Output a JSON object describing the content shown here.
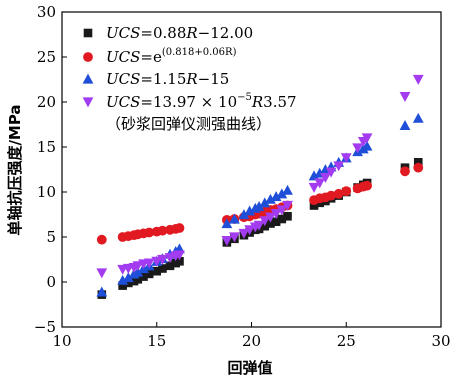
{
  "chart_data": {
    "type": "scatter",
    "xlabel": "回弹值",
    "ylabel": "单轴抗压强度/MPa",
    "xlim": [
      10,
      30
    ],
    "ylim": [
      -5,
      30
    ],
    "xticks": [
      "10",
      "15",
      "20",
      "25",
      "30"
    ],
    "yticks": [
      "-5",
      "0",
      "5",
      "10",
      "15",
      "20",
      "25",
      "30"
    ],
    "grid": false,
    "legend_position": "top-left",
    "series": [
      {
        "name": "UCS=0.88R-12.00",
        "legend_parts": [
          {
            "t": "UCS",
            "i": true
          },
          {
            "t": "=0.88",
            "i": false
          },
          {
            "t": "R",
            "i": true
          },
          {
            "t": "−12.00",
            "i": false
          }
        ],
        "marker": "square",
        "color": "#1a1a1a",
        "x": [
          12.1,
          13.2,
          13.5,
          13.8,
          14.0,
          14.3,
          14.6,
          15.0,
          15.3,
          15.7,
          16.0,
          16.2,
          18.7,
          19.1,
          19.6,
          19.9,
          20.2,
          20.4,
          20.7,
          21.0,
          21.3,
          21.6,
          21.9,
          23.3,
          23.6,
          23.9,
          24.2,
          24.6,
          25.0,
          25.6,
          25.9,
          26.1,
          28.1,
          28.8
        ],
        "y": [
          -1.4,
          -0.4,
          -0.1,
          0.1,
          0.3,
          0.6,
          0.9,
          1.2,
          1.5,
          1.8,
          2.1,
          2.3,
          4.4,
          4.8,
          5.2,
          5.5,
          5.8,
          5.9,
          6.2,
          6.5,
          6.7,
          7.0,
          7.3,
          8.5,
          8.8,
          9.0,
          9.3,
          9.6,
          10.0,
          10.5,
          10.8,
          11.0,
          12.7,
          13.3
        ]
      },
      {
        "name": "UCS=e^(0.818+0.06R)",
        "legend_parts": [
          {
            "t": "UCS",
            "i": true
          },
          {
            "t": "=e",
            "i": false
          }
        ],
        "legend_sup": "(0.818+0.06R)",
        "marker": "circle",
        "color": "#e11a22",
        "x": [
          12.1,
          13.2,
          13.5,
          13.8,
          14.0,
          14.3,
          14.6,
          15.0,
          15.3,
          15.7,
          16.0,
          16.2,
          18.7,
          19.1,
          19.6,
          19.9,
          20.2,
          20.4,
          20.7,
          21.0,
          21.3,
          21.6,
          21.9,
          23.3,
          23.6,
          23.9,
          24.2,
          24.6,
          25.0,
          25.6,
          25.9,
          26.1,
          28.1,
          28.8
        ],
        "y": [
          4.7,
          5.0,
          5.1,
          5.2,
          5.3,
          5.4,
          5.5,
          5.6,
          5.7,
          5.8,
          5.9,
          6.0,
          6.9,
          7.0,
          7.2,
          7.3,
          7.5,
          7.6,
          7.8,
          8.0,
          8.1,
          8.3,
          8.5,
          9.1,
          9.3,
          9.4,
          9.6,
          9.8,
          10.1,
          10.4,
          10.6,
          10.7,
          12.3,
          12.7
        ]
      },
      {
        "name": "UCS=1.15R-15",
        "legend_parts": [
          {
            "t": "UCS",
            "i": true
          },
          {
            "t": "=1.15",
            "i": false
          },
          {
            "t": "R",
            "i": true
          },
          {
            "t": "−15",
            "i": false
          }
        ],
        "marker": "triangle-up",
        "color": "#1f4fd8",
        "x": [
          12.1,
          13.2,
          13.5,
          13.8,
          14.0,
          14.3,
          14.6,
          15.0,
          15.3,
          15.7,
          16.0,
          16.2,
          18.7,
          19.1,
          19.6,
          19.9,
          20.2,
          20.4,
          20.7,
          21.0,
          21.3,
          21.6,
          21.9,
          23.3,
          23.6,
          23.9,
          24.2,
          24.6,
          25.0,
          25.6,
          25.9,
          26.1,
          28.1,
          28.8
        ],
        "y": [
          -1.1,
          0.2,
          0.5,
          0.9,
          1.1,
          1.5,
          1.8,
          2.3,
          2.6,
          3.1,
          3.4,
          3.7,
          6.5,
          7.0,
          7.5,
          7.9,
          8.2,
          8.4,
          8.8,
          9.2,
          9.5,
          9.8,
          10.2,
          11.8,
          12.1,
          12.5,
          12.8,
          13.3,
          13.8,
          14.5,
          14.8,
          15.1,
          17.4,
          18.2
        ]
      },
      {
        "name": "UCS=13.97×10^-5 R^3.57",
        "legend_parts": [
          {
            "t": "UCS",
            "i": true
          },
          {
            "t": "=13.97 × 10",
            "i": false
          }
        ],
        "legend_sup": "−5",
        "legend_tail": [
          {
            "t": "R",
            "i": true
          },
          {
            "t": "3.57",
            "i": false
          }
        ],
        "legend_note": "（砂浆回弹仪测强曲线）",
        "marker": "triangle-down",
        "color": "#a33cf0",
        "x": [
          12.1,
          13.2,
          13.5,
          13.8,
          14.0,
          14.3,
          14.6,
          15.0,
          15.3,
          15.7,
          16.0,
          16.2,
          18.7,
          19.1,
          19.6,
          19.9,
          20.2,
          20.4,
          20.7,
          21.0,
          21.3,
          21.6,
          21.9,
          23.3,
          23.6,
          23.9,
          24.2,
          24.6,
          25.0,
          25.6,
          25.9,
          26.1,
          28.1,
          28.8
        ],
        "y": [
          1.0,
          1.4,
          1.5,
          1.6,
          1.8,
          2.0,
          2.1,
          2.3,
          2.5,
          2.7,
          2.9,
          3.0,
          4.6,
          5.0,
          5.4,
          5.8,
          6.1,
          6.3,
          6.8,
          7.2,
          7.6,
          8.0,
          8.5,
          10.5,
          11.0,
          11.6,
          12.2,
          12.9,
          13.8,
          14.9,
          15.6,
          16.0,
          20.6,
          22.5
        ]
      }
    ]
  }
}
